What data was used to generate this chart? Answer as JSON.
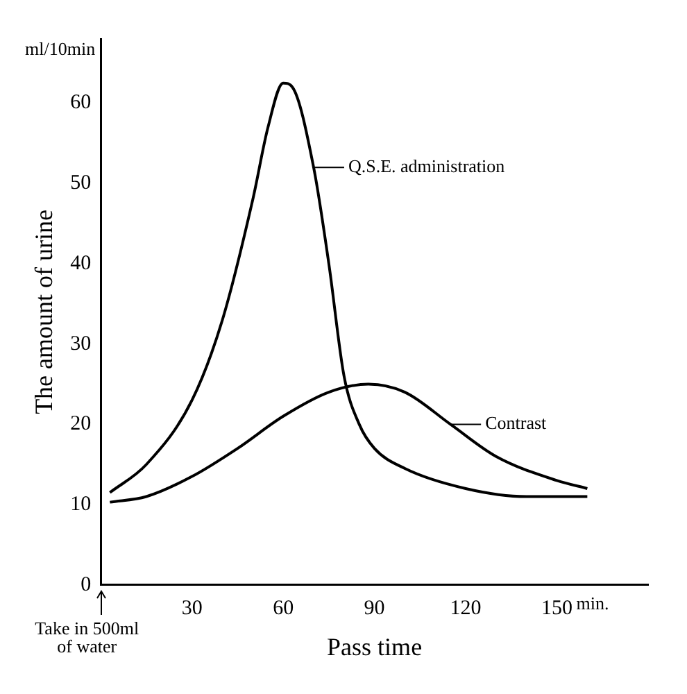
{
  "chart_data": {
    "type": "line",
    "xlabel": "Pass time",
    "ylabel": "The amount of urine",
    "annotations": [
      "ml/10min",
      "min.",
      "Take in 500ml of water"
    ],
    "xlim": [
      0,
      180
    ],
    "xticks": [
      30,
      60,
      90,
      120,
      150
    ],
    "ylim": [
      0,
      68
    ],
    "yticks": [
      0,
      10,
      20,
      30,
      40,
      50,
      60
    ],
    "grid": false,
    "legend": "right",
    "marker": "none",
    "line_style": "solid",
    "series": [
      {
        "name": "Q.S.E. administration",
        "color": "#000000",
        "x": [
          3,
          15,
          30,
          40,
          50,
          55,
          60,
          63,
          70,
          75,
          80,
          85,
          90,
          100,
          120,
          140,
          160
        ],
        "values": [
          11.5,
          15,
          23,
          33,
          48,
          57,
          62.5,
          62,
          52,
          40,
          26,
          20,
          17,
          14.5,
          12,
          11,
          11
        ]
      },
      {
        "name": "Contrast",
        "color": "#000000",
        "x": [
          3,
          15,
          30,
          45,
          60,
          75,
          88,
          100,
          115,
          130,
          150,
          160
        ],
        "values": [
          10.3,
          11,
          13.5,
          17,
          21,
          24,
          25,
          24,
          20,
          16,
          13,
          12
        ]
      }
    ]
  }
}
